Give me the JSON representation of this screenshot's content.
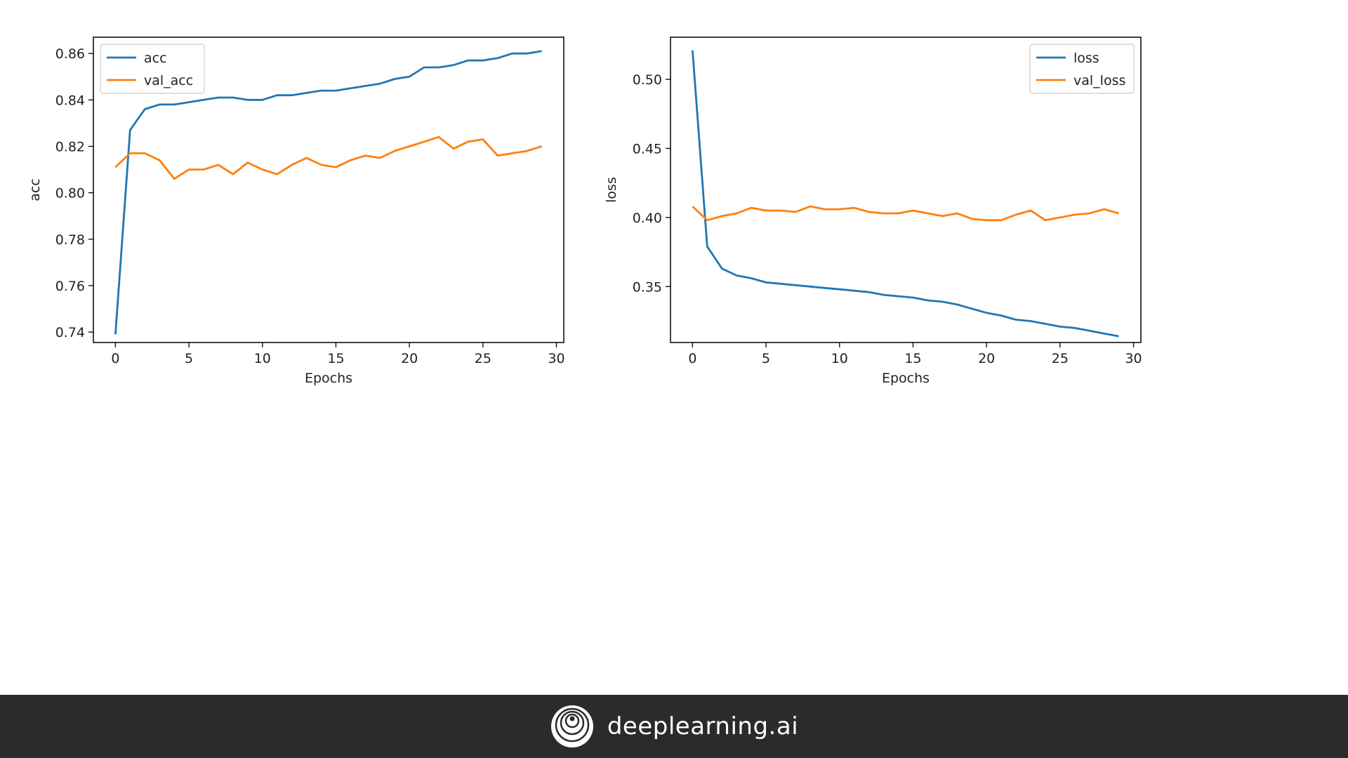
{
  "chart_data": [
    {
      "type": "line",
      "xlabel": "Epochs",
      "ylabel": "acc",
      "xlim": [
        -1.5,
        30.5
      ],
      "ylim": [
        0.7355,
        0.867
      ],
      "xticks": [
        0,
        5,
        10,
        15,
        20,
        25,
        30
      ],
      "yticks": [
        0.74,
        0.76,
        0.78,
        0.8,
        0.82,
        0.84,
        0.86
      ],
      "ytick_decimals": 2,
      "legend": "top-left",
      "x": [
        0,
        1,
        2,
        3,
        4,
        5,
        6,
        7,
        8,
        9,
        10,
        11,
        12,
        13,
        14,
        15,
        16,
        17,
        18,
        19,
        20,
        21,
        22,
        23,
        24,
        25,
        26,
        27,
        28,
        29
      ],
      "series": [
        {
          "name": "acc",
          "color": "#1f77b4",
          "values": [
            0.739,
            0.827,
            0.836,
            0.838,
            0.838,
            0.839,
            0.84,
            0.841,
            0.841,
            0.84,
            0.84,
            0.842,
            0.842,
            0.843,
            0.844,
            0.844,
            0.845,
            0.846,
            0.847,
            0.849,
            0.85,
            0.854,
            0.854,
            0.855,
            0.857,
            0.857,
            0.858,
            0.86,
            0.86,
            0.861
          ]
        },
        {
          "name": "val_acc",
          "color": "#ff7f0e",
          "values": [
            0.811,
            0.817,
            0.817,
            0.814,
            0.806,
            0.81,
            0.81,
            0.812,
            0.808,
            0.813,
            0.81,
            0.808,
            0.812,
            0.815,
            0.812,
            0.811,
            0.814,
            0.816,
            0.815,
            0.818,
            0.82,
            0.822,
            0.824,
            0.819,
            0.822,
            0.823,
            0.816,
            0.817,
            0.818,
            0.82
          ]
        }
      ]
    },
    {
      "type": "line",
      "xlabel": "Epochs",
      "ylabel": "loss",
      "xlim": [
        -1.5,
        30.5
      ],
      "ylim": [
        0.3095,
        0.5305
      ],
      "xticks": [
        0,
        5,
        10,
        15,
        20,
        25,
        30
      ],
      "yticks": [
        0.35,
        0.4,
        0.45,
        0.5
      ],
      "ytick_decimals": 2,
      "legend": "top-right",
      "x": [
        0,
        1,
        2,
        3,
        4,
        5,
        6,
        7,
        8,
        9,
        10,
        11,
        12,
        13,
        14,
        15,
        16,
        17,
        18,
        19,
        20,
        21,
        22,
        23,
        24,
        25,
        26,
        27,
        28,
        29
      ],
      "series": [
        {
          "name": "loss",
          "color": "#1f77b4",
          "values": [
            0.521,
            0.379,
            0.363,
            0.358,
            0.356,
            0.353,
            0.352,
            0.351,
            0.35,
            0.349,
            0.348,
            0.347,
            0.346,
            0.344,
            0.343,
            0.342,
            0.34,
            0.339,
            0.337,
            0.334,
            0.331,
            0.329,
            0.326,
            0.325,
            0.323,
            0.321,
            0.32,
            0.318,
            0.316,
            0.314
          ]
        },
        {
          "name": "val_loss",
          "color": "#ff7f0e",
          "values": [
            0.408,
            0.398,
            0.401,
            0.403,
            0.407,
            0.405,
            0.405,
            0.404,
            0.408,
            0.406,
            0.406,
            0.407,
            0.404,
            0.403,
            0.403,
            0.405,
            0.403,
            0.401,
            0.403,
            0.399,
            0.398,
            0.398,
            0.402,
            0.405,
            0.398,
            0.4,
            0.402,
            0.403,
            0.406,
            0.403
          ]
        }
      ]
    }
  ],
  "footer": {
    "brand_text": "deeplearning.ai",
    "logo_icon": "deeplearning-logo-icon",
    "background": "#2b2b2b"
  }
}
